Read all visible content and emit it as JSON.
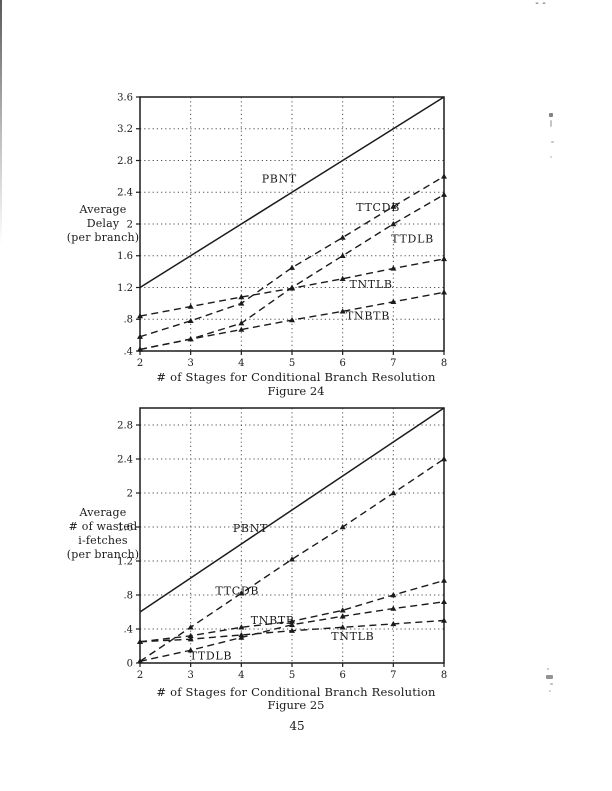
{
  "page": {
    "number": "45"
  },
  "artifacts": {
    "top_right_mark": "--"
  },
  "chart_data": [
    {
      "type": "line",
      "figure_caption": "Figure 24",
      "xlabel": "# of Stages for Conditional Branch Resolution",
      "ylabel_lines": [
        "Average",
        "Delay",
        "(per branch)"
      ],
      "x": [
        2,
        3,
        4,
        5,
        6,
        7,
        8
      ],
      "xlim": [
        2,
        8
      ],
      "ylim": [
        0.4,
        3.6
      ],
      "xtick_labels": [
        "2",
        "3",
        "4",
        "5",
        "6",
        "7",
        "8"
      ],
      "ytick_values": [
        0.4,
        0.8,
        1.2,
        1.6,
        2.0,
        2.4,
        2.8,
        3.2,
        3.6
      ],
      "ytick_labels": [
        ".4",
        ".8",
        "1.2",
        "1.6",
        "2",
        "2.4",
        "2.8",
        "3.2",
        "3.6"
      ],
      "grid": "dotted",
      "legend": "inline-labels",
      "series": [
        {
          "name": "PBNT",
          "line": "solid",
          "marker": false,
          "values": [
            1.2,
            1.6,
            2.0,
            2.4,
            2.8,
            3.2,
            3.6
          ],
          "label_x": 4.75,
          "label_y": 2.57
        },
        {
          "name": "TTCDB",
          "line": "dashed",
          "marker": true,
          "values": [
            0.58,
            0.78,
            1.0,
            1.45,
            1.83,
            2.22,
            2.6
          ],
          "label_x": 6.7,
          "label_y": 2.21
        },
        {
          "name": "TTDLB",
          "line": "dashed",
          "marker": true,
          "values": [
            0.42,
            0.55,
            0.75,
            1.2,
            1.6,
            2.0,
            2.37
          ],
          "label_x": 7.38,
          "label_y": 1.81
        },
        {
          "name": "TNTLB",
          "line": "dashed",
          "marker": true,
          "values": [
            0.84,
            0.96,
            1.08,
            1.19,
            1.31,
            1.44,
            1.56
          ],
          "label_x": 6.56,
          "label_y": 1.24
        },
        {
          "name": "TNBTB",
          "line": "dashed",
          "marker": true,
          "values": [
            0.42,
            0.55,
            0.67,
            0.79,
            0.9,
            1.02,
            1.14
          ],
          "label_x": 6.5,
          "label_y": 0.84
        }
      ]
    },
    {
      "type": "line",
      "figure_caption": "Figure 25",
      "xlabel": "# of Stages for Conditional Branch Resolution",
      "ylabel_lines": [
        "Average",
        "# of wasted",
        "i-fetches",
        "(per branch)"
      ],
      "x": [
        2,
        3,
        4,
        5,
        6,
        7,
        8
      ],
      "xlim": [
        2,
        8
      ],
      "ylim": [
        0,
        3.0
      ],
      "xtick_labels": [
        "2",
        "3",
        "4",
        "5",
        "6",
        "7",
        "8"
      ],
      "ytick_values": [
        0,
        0.4,
        0.8,
        1.2,
        1.6,
        2.0,
        2.4,
        2.8
      ],
      "ytick_labels": [
        "0",
        ".4",
        ".8",
        "1.2",
        "1.6",
        "2",
        "2.4",
        "2.8"
      ],
      "grid": "dotted",
      "legend": "inline-labels",
      "series": [
        {
          "name": "PBNT",
          "line": "solid",
          "marker": false,
          "values": [
            0.6,
            1.0,
            1.4,
            1.8,
            2.2,
            2.6,
            3.0
          ],
          "label_x": 4.18,
          "label_y": 1.58
        },
        {
          "name": "TTCDB",
          "line": "dashed",
          "marker": true,
          "values": [
            0.02,
            0.42,
            0.82,
            1.22,
            1.6,
            2.0,
            2.4
          ],
          "label_x": 3.92,
          "label_y": 0.85
        },
        {
          "name": "TNBTB",
          "line": "dashed",
          "marker": true,
          "values": [
            0.25,
            0.32,
            0.42,
            0.49,
            0.62,
            0.8,
            0.97
          ],
          "label_x": 4.62,
          "label_y": 0.5
        },
        {
          "name": "TNTLB",
          "line": "dashed",
          "marker": true,
          "values": [
            0.25,
            0.28,
            0.33,
            0.38,
            0.42,
            0.46,
            0.5
          ],
          "label_x": 6.2,
          "label_y": 0.31
        },
        {
          "name": "TTDLB",
          "line": "dashed",
          "marker": true,
          "values": [
            0.02,
            0.15,
            0.3,
            0.45,
            0.55,
            0.64,
            0.72
          ],
          "label_x": 3.4,
          "label_y": 0.08
        }
      ]
    }
  ]
}
